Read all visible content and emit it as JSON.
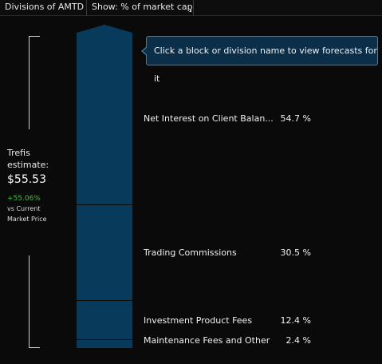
{
  "topbar": {
    "title": "Divisions of AMTD",
    "show_label": "Show: % of market cap"
  },
  "estimate": {
    "label_line1": "Trefis",
    "label_line2": "estimate:",
    "value": "$55.53",
    "change": "+55.06%",
    "note_line1": "vs Current",
    "note_line2": "Market Price"
  },
  "tooltip": {
    "text": "Click a block or division name to view forecasts for it"
  },
  "divisions": [
    {
      "name": "Net Interest on Client Balan...",
      "percent": "54.7 %",
      "share": 54.7
    },
    {
      "name": "Trading Commissions",
      "percent": "30.5 %",
      "share": 30.5
    },
    {
      "name": "Investment Product Fees",
      "percent": "12.4 %",
      "share": 12.4
    },
    {
      "name": "Maintenance Fees and Other",
      "percent": "2.4 %",
      "share": 2.4
    }
  ],
  "colors": {
    "block": "#083a5c",
    "positive": "#3fbf3f",
    "tooltip_border": "#3f7fa6"
  }
}
